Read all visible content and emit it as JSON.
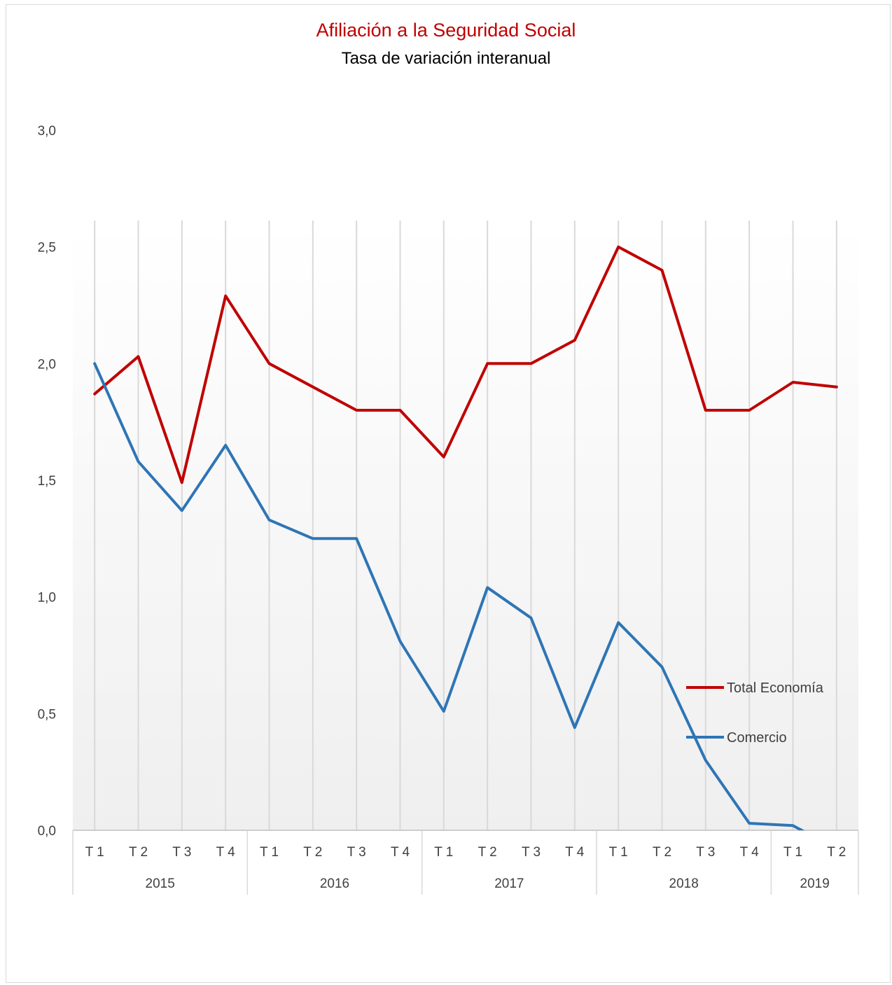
{
  "chart_data": {
    "type": "line",
    "title": "Afiliación a la Seguridad Social",
    "subtitle": "Tasa de variación interanual",
    "xlabel": "",
    "ylabel": "",
    "ylim": [
      0,
      3
    ],
    "y_ticks": [
      "0,0",
      "0,5",
      "1,0",
      "1,5",
      "2,0",
      "2,5",
      "3,0"
    ],
    "y_tick_values": [
      0,
      0.5,
      1.0,
      1.5,
      2.0,
      2.5,
      3.0
    ],
    "categories": [
      "T 1",
      "T 2",
      "T 3",
      "T 4",
      "T 1",
      "T 2",
      "T 3",
      "T 4",
      "T 1",
      "T 2",
      "T 3",
      "T 4",
      "T 1",
      "T 2",
      "T 3",
      "T 4",
      "T 1",
      "T 2"
    ],
    "years": [
      {
        "label": "2015",
        "count": 4
      },
      {
        "label": "2016",
        "count": 4
      },
      {
        "label": "2017",
        "count": 4
      },
      {
        "label": "2018",
        "count": 4
      },
      {
        "label": "2019",
        "count": 2
      }
    ],
    "series": [
      {
        "name": "Total Economía",
        "color": "#c00000",
        "values": [
          1.87,
          2.03,
          1.49,
          2.29,
          2.0,
          1.9,
          1.8,
          1.8,
          1.6,
          2.0,
          2.0,
          2.1,
          2.5,
          2.4,
          1.8,
          1.8,
          1.92,
          1.9
        ]
      },
      {
        "name": "Comercio",
        "color": "#2e75b6",
        "values": [
          2.0,
          1.58,
          1.37,
          1.65,
          1.33,
          1.25,
          1.25,
          0.81,
          0.51,
          1.04,
          0.91,
          0.44,
          0.89,
          0.7,
          0.3,
          0.03,
          0.02,
          -0.08
        ]
      }
    ],
    "grid": "vertical-category-lines",
    "legend_position": "right",
    "background": "gradient-white-to-grey"
  }
}
